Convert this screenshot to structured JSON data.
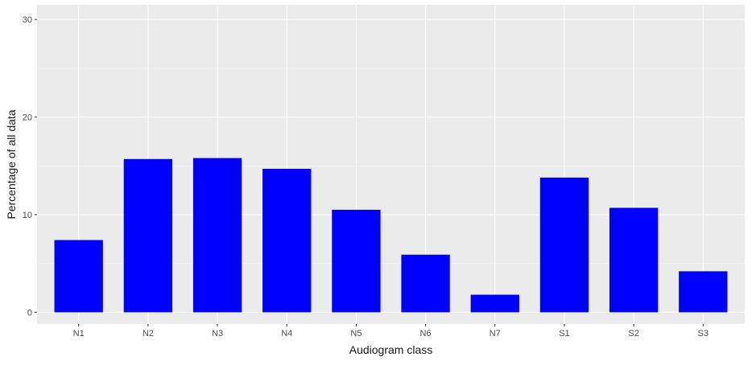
{
  "chart_data": {
    "type": "bar",
    "title": "",
    "xlabel": "Audiogram class",
    "ylabel": "Percentage of all data",
    "categories": [
      "N1",
      "N2",
      "N3",
      "N4",
      "N5",
      "N6",
      "N7",
      "S1",
      "S2",
      "S3"
    ],
    "values": [
      7.4,
      15.7,
      15.8,
      14.7,
      10.5,
      5.9,
      1.8,
      13.8,
      10.7,
      4.2
    ],
    "ylim": [
      -1.2,
      31.5
    ],
    "yticks": [
      "0",
      "10",
      "20",
      "30"
    ],
    "grid": true,
    "legend": "none",
    "colors": {
      "bar": "#0000ff",
      "panel": "#ebebeb",
      "grid_major": "#ffffff",
      "grid_minor": "#f5f5f5",
      "tick_text": "#4d4d4d",
      "tick_mark": "#333333",
      "title_text": "#1a1a1a"
    }
  }
}
